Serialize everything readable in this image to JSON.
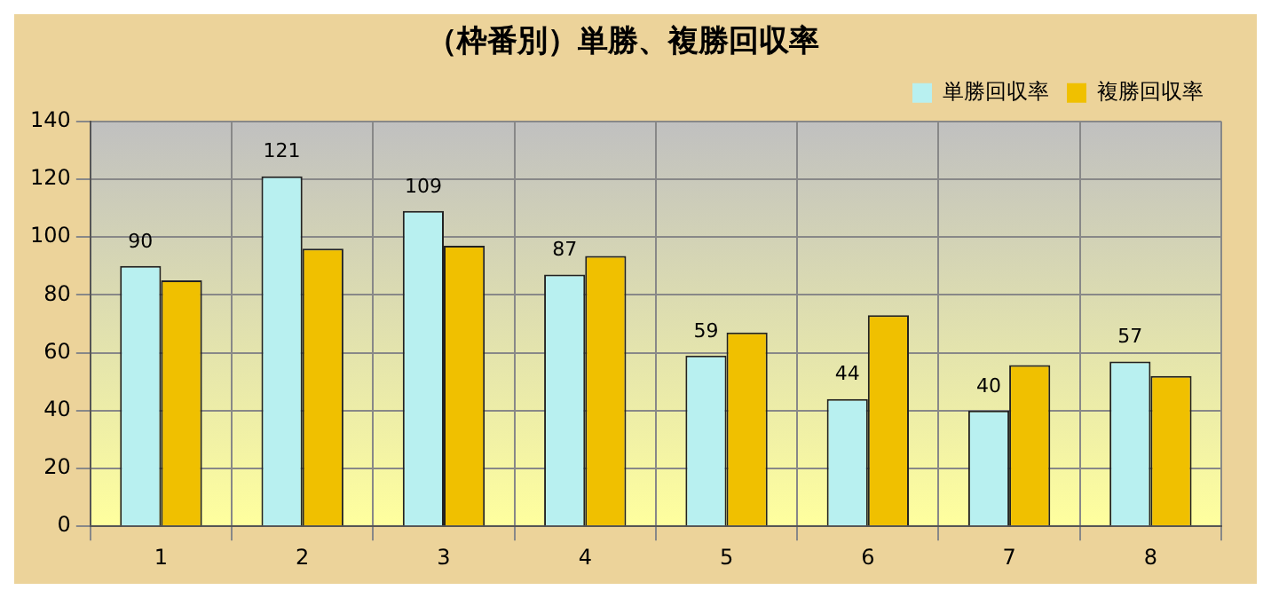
{
  "chart_data": {
    "type": "bar",
    "title": "（枠番別）単勝、複勝回収率",
    "categories": [
      "1",
      "2",
      "3",
      "4",
      "5",
      "6",
      "7",
      "8"
    ],
    "series": [
      {
        "name": "単勝回収率",
        "color": "#b8f0f0",
        "values": [
          90,
          121,
          109,
          87,
          59,
          44,
          40,
          57
        ],
        "value_labels": [
          "90",
          "121",
          "109",
          "87",
          "59",
          "44",
          "40",
          "57"
        ]
      },
      {
        "name": "複勝回収率",
        "color": "#f0c000",
        "values": [
          85,
          96,
          97,
          93.5,
          67,
          73,
          55.7,
          52
        ]
      }
    ],
    "ylim": [
      0,
      140
    ],
    "yticks": [
      0,
      20,
      40,
      60,
      80,
      100,
      120,
      140
    ],
    "grid": true,
    "legend": "top right"
  }
}
